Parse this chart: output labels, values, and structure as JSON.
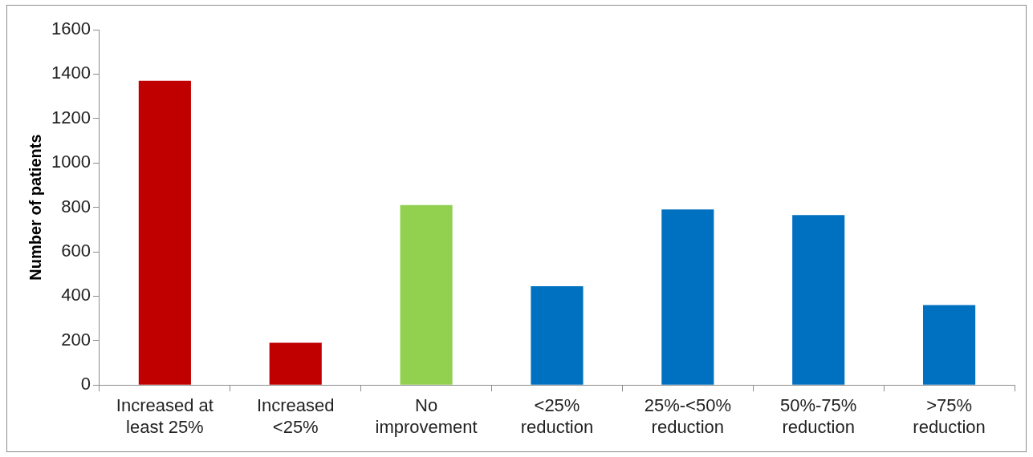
{
  "chart_data": {
    "type": "bar",
    "ylabel": "Number of patients",
    "categories": [
      "Increased at least 25%",
      "Increased <25%",
      "No improvement",
      "<25% reduction",
      "25%-<50% reduction",
      "50%-75% reduction",
      ">75% reduction"
    ],
    "values": [
      1370,
      190,
      810,
      445,
      790,
      765,
      360
    ],
    "colors": [
      "#c00000",
      "#c00000",
      "#92d050",
      "#0070c0",
      "#0070c0",
      "#0070c0",
      "#0070c0"
    ],
    "ylim": [
      0,
      1600
    ],
    "yticks": [
      0,
      200,
      400,
      600,
      800,
      1000,
      1200,
      1400,
      1600
    ],
    "grid": false,
    "legend": false
  }
}
